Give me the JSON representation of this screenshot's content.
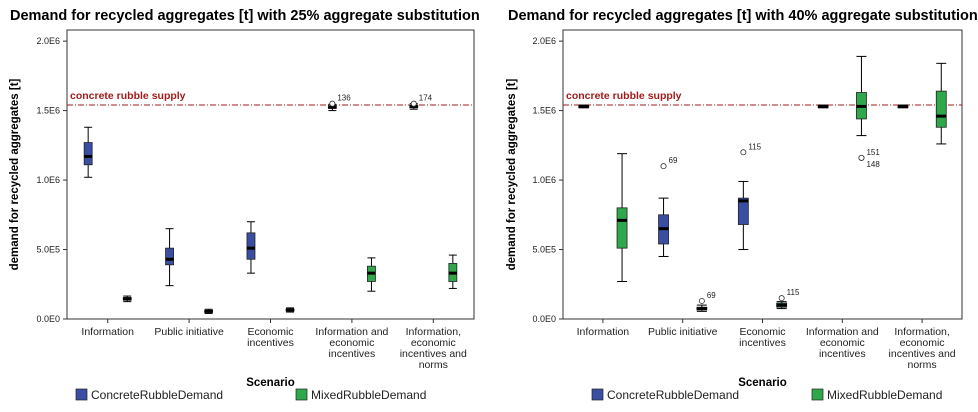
{
  "chart_data": [
    {
      "type": "boxplot",
      "title": "Demand for recycled aggregates [t] with 25% aggregate substitution",
      "xlabel": "Scenario",
      "ylabel": "demand for recycled aggregates [t]",
      "yticks": [
        {
          "value": 0,
          "label": "0.0E0"
        },
        {
          "value": 500000,
          "label": "5.0E5"
        },
        {
          "value": 1000000,
          "label": "1.0E6"
        },
        {
          "value": 1500000,
          "label": "1.5E6"
        },
        {
          "value": 2000000,
          "label": "2.0E6"
        }
      ],
      "categories": [
        [
          "Information"
        ],
        [
          "Public initiative"
        ],
        [
          "Economic",
          "incentives"
        ],
        [
          "Information and",
          "economic",
          "incentives"
        ],
        [
          "Information,",
          "economic",
          "incentives and",
          "norms"
        ]
      ],
      "reference_line": {
        "label": "concrete rubble supply",
        "value": 1540000
      },
      "series": [
        {
          "name": "ConcreteRubbleDemand",
          "color": "#3a4fa3",
          "boxes": [
            {
              "min": 1020000,
              "q1": 1110000,
              "median": 1170000,
              "q3": 1270000,
              "max": 1380000
            },
            {
              "min": 240000,
              "q1": 390000,
              "median": 430000,
              "q3": 510000,
              "max": 650000
            },
            {
              "min": 330000,
              "q1": 430000,
              "median": 510000,
              "q3": 620000,
              "max": 700000
            },
            {
              "min": 1500000,
              "q1": 1515000,
              "median": 1525000,
              "q3": 1535000,
              "max": 1545000,
              "outliers": [
                {
                  "value": 1550000,
                  "label": "136"
                }
              ]
            },
            {
              "min": 1510000,
              "q1": 1520000,
              "median": 1530000,
              "q3": 1540000,
              "max": 1550000,
              "outliers": [
                {
                  "value": 1550000,
                  "label": "174"
                }
              ]
            }
          ]
        },
        {
          "name": "MixedRubbleDemand",
          "color": "#2ea84a",
          "boxes": [
            {
              "min": 125000,
              "q1": 135000,
              "median": 145000,
              "q3": 155000,
              "max": 165000
            },
            {
              "min": 40000,
              "q1": 48000,
              "median": 55000,
              "q3": 62000,
              "max": 70000
            },
            {
              "min": 50000,
              "q1": 58000,
              "median": 65000,
              "q3": 72000,
              "max": 80000
            },
            {
              "min": 200000,
              "q1": 270000,
              "median": 330000,
              "q3": 380000,
              "max": 440000
            },
            {
              "min": 220000,
              "q1": 270000,
              "median": 330000,
              "q3": 400000,
              "max": 460000
            }
          ]
        }
      ]
    },
    {
      "type": "boxplot",
      "title": "Demand for recycled aggregates [t] with 40% aggregate substitution",
      "xlabel": "Scenario",
      "ylabel": "demand for recycled aggregates [t]",
      "yticks": [
        {
          "value": 0,
          "label": "0.0E0"
        },
        {
          "value": 500000,
          "label": "5.0E5"
        },
        {
          "value": 1000000,
          "label": "1.0E6"
        },
        {
          "value": 1500000,
          "label": "1.5E6"
        },
        {
          "value": 2000000,
          "label": "2.0E6"
        }
      ],
      "categories": [
        [
          "Information"
        ],
        [
          "Public initiative"
        ],
        [
          "Economic",
          "incentives"
        ],
        [
          "Information and",
          "economic",
          "incentives"
        ],
        [
          "Information,",
          "economic",
          "incentives and",
          "norms"
        ]
      ],
      "reference_line": {
        "label": "concrete rubble supply",
        "value": 1540000
      },
      "series": [
        {
          "name": "ConcreteRubbleDemand",
          "color": "#3a4fa3",
          "boxes": [
            {
              "min": 1520000,
              "q1": 1525000,
              "median": 1530000,
              "q3": 1535000,
              "max": 1540000
            },
            {
              "min": 450000,
              "q1": 540000,
              "median": 650000,
              "q3": 750000,
              "max": 870000,
              "outliers": [
                {
                  "value": 1100000,
                  "label": "69"
                }
              ]
            },
            {
              "min": 500000,
              "q1": 680000,
              "median": 850000,
              "q3": 870000,
              "max": 990000,
              "outliers": [
                {
                  "value": 1200000,
                  "label": "115"
                }
              ]
            },
            {
              "min": 1520000,
              "q1": 1525000,
              "median": 1530000,
              "q3": 1535000,
              "max": 1540000
            },
            {
              "min": 1520000,
              "q1": 1525000,
              "median": 1530000,
              "q3": 1535000,
              "max": 1540000
            }
          ]
        },
        {
          "name": "MixedRubbleDemand",
          "color": "#2ea84a",
          "boxes": [
            {
              "min": 270000,
              "q1": 510000,
              "median": 710000,
              "q3": 800000,
              "max": 1190000
            },
            {
              "min": 55000,
              "q1": 65000,
              "median": 75000,
              "q3": 85000,
              "max": 100000,
              "outliers": [
                {
                  "value": 130000,
                  "label": "69"
                }
              ]
            },
            {
              "min": 75000,
              "q1": 85000,
              "median": 100000,
              "q3": 115000,
              "max": 125000,
              "outliers": [
                {
                  "value": 150000,
                  "label": "115"
                }
              ]
            },
            {
              "min": 1320000,
              "q1": 1440000,
              "median": 1530000,
              "q3": 1630000,
              "max": 1890000,
              "outliers": [
                {
                  "value": 1160000,
                  "label": "151"
                },
                {
                  "value": 1160000,
                  "label": "148"
                }
              ]
            },
            {
              "min": 1260000,
              "q1": 1380000,
              "median": 1460000,
              "q3": 1640000,
              "max": 1840000
            }
          ]
        }
      ]
    }
  ]
}
